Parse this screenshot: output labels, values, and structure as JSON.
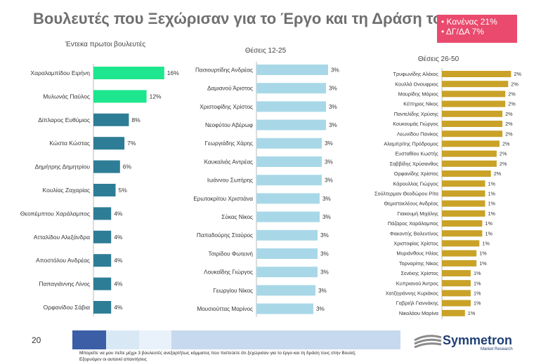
{
  "header": {
    "title": "Βουλευτές που Ξεχώρισαν για το Έργο και τη Δράση τους"
  },
  "badge": {
    "line1": "• Κανένας 21%",
    "line2": "• ΔΓ/ΔΑ 7%",
    "color": "#e94a6e"
  },
  "footer": {
    "page_number": "20",
    "logo_text": "Symmetron",
    "logo_sub": "Market Research",
    "note": "Μπορείτε να μου πείτε μέχρι 3 βουλευτές ανεξαρτήτως κόμματος που πιστεύετε ότι ξεχώρισαν για το έργο και τη δράση τους στην Βουλή;",
    "note2": "Εξορυόμεν οι αυτανεί απαντήσεις"
  },
  "colors": {
    "green": "#1ee68e",
    "teal": "#2e7d96",
    "lightblue": "#a8d8e8",
    "gold": "#c9a227"
  },
  "chart_data": [
    {
      "type": "bar",
      "subtitle": "Έντεκα πρωτοι βουλευτές",
      "categories": [
        "Χαραλαμπίδου Ειρήνη",
        "Μυλωνάς Παύλος",
        "Δίπλαρος Ευθύμιος",
        "Κώστα Κώστας",
        "Δημήτρης Δημητρίου",
        "Κουλίας Ζαχαρίας",
        "Θεοπέμπτου Χαράλαμπος",
        "Ατταλίδου Αλεξάνδρα",
        "Αποστόλου Ανδρέας",
        "Παπαγιάννης Λίνος",
        "Ορφανίδου Σάβια"
      ],
      "values": [
        16,
        12,
        8,
        7,
        6,
        5,
        4,
        4,
        4,
        4,
        4
      ],
      "labels": [
        "16%",
        "12%",
        "8%",
        "7%",
        "6%",
        "5%",
        "4%",
        "4%",
        "4%",
        "4%",
        "4%"
      ],
      "colors": [
        "#1ee68e",
        "#1ee68e",
        "#2e7d96",
        "#2e7d96",
        "#2e7d96",
        "#2e7d96",
        "#2e7d96",
        "#2e7d96",
        "#2e7d96",
        "#2e7d96",
        "#2e7d96"
      ]
    },
    {
      "type": "bar",
      "subtitle": "Θέσεις 12-25",
      "categories": [
        "Πασιουρτίδης Ανδρέας",
        "Δαμιανού Άριστος",
        "Χριστοφίδης Χρίστος",
        "Νεοφύτου Αβέρωφ",
        "Γεωργιάδης Χάρης",
        "Καυκαλιάς Αντρέας",
        "Ιωάννου Σωτήρης",
        "Ερωτοκρίτου Χριστιάνα",
        "Σύκας Νίκος",
        "Παπαδούρης Σταύρος",
        "Τσιρίδου Φωτεινή",
        "Λουκαΐδης Γιώργος",
        "Γεωργίου Νίκος",
        "Μουσιούττας Μαρίνος"
      ],
      "values": [
        3.4,
        3.3,
        3.3,
        3.3,
        3.1,
        3.1,
        3.1,
        3.0,
        3.0,
        2.9,
        2.9,
        2.9,
        2.8,
        2.7
      ],
      "labels": [
        "3%",
        "3%",
        "3%",
        "3%",
        "3%",
        "3%",
        "3%",
        "3%",
        "3%",
        "3%",
        "3%",
        "3%",
        "3%",
        "3%"
      ],
      "color": "#a8d8e8"
    },
    {
      "type": "bar",
      "subtitle": "Θέσεις 26-50",
      "categories": [
        "Τρυφωνίδης Αλέκος",
        "Κουλλά Ονουφριος",
        "Μαυρίδης Μάριος",
        "Κέττηρος Νίκος",
        "Παντελίδης Χρύσης",
        "Κουκουμάς Γιώργος",
        "Λεωνίδου Πανίκος",
        "Αλαμπρίτης Πρόδρομος",
        "Ευσταθίου Κωστής",
        "Σαββίδης Χρύσανθος",
        "Ορφανίδης Χρίστος",
        "Κάρουλλας Γιώργος",
        "Σούλτερμαν Θεοδώρου Ρίτα",
        "Θεμιστοκλέους Ανδρέας",
        "Γιακουμή Μιχάλης",
        "Πάζαρος Χαράλαμπος",
        "Φακοντής Βαλεντίνος",
        "Χριστοφίας Χρίστος",
        "Μυριάνθους Ηλίας",
        "Τορναρίτης Νίκος",
        "Σενέκης Χρίστος",
        "Κυπριανού Άντρος",
        "Χατζηγιάννης Κυριάκος",
        "Γαβριήλ Γιαννάκης",
        "Νικολάου Μαρίνα"
      ],
      "values": [
        2.4,
        2.3,
        2.2,
        2.2,
        2.1,
        2.1,
        2.1,
        2.0,
        1.9,
        1.9,
        1.7,
        1.5,
        1.5,
        1.5,
        1.5,
        1.4,
        1.4,
        1.3,
        1.2,
        1.2,
        1.0,
        1.0,
        1.0,
        1.0,
        0.8
      ],
      "labels": [
        "2%",
        "2%",
        "2%",
        "2%",
        "2%",
        "2%",
        "2%",
        "2%",
        "2%",
        "2%",
        "2%",
        "1%",
        "1%",
        "1%",
        "1%",
        "1%",
        "1%",
        "1%",
        "1%",
        "1%",
        "1%",
        "1%",
        "1%",
        "1%",
        "1%"
      ],
      "color": "#c9a227"
    }
  ]
}
